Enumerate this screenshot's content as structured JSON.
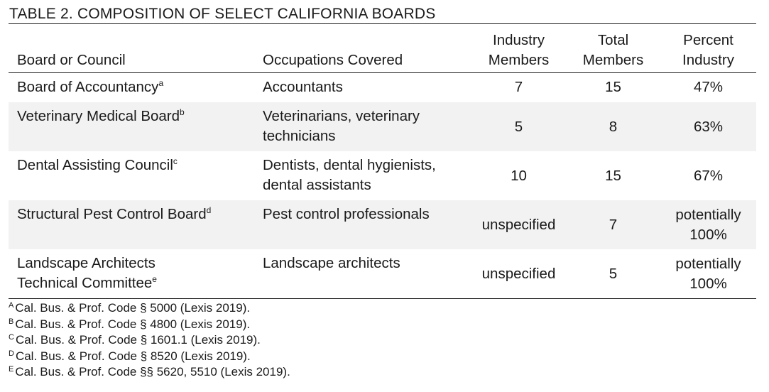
{
  "table": {
    "title": "TABLE 2. COMPOSITION OF SELECT CALIFORNIA BOARDS",
    "headers": {
      "board": "Board or Council",
      "occupations": "Occupations Covered",
      "industry_line1": "Industry",
      "industry_line2": "Members",
      "total_line1": "Total",
      "total_line2": "Members",
      "percent_line1": "Percent",
      "percent_line2": "Industry"
    },
    "rows": [
      {
        "board_line1": "Board of Accountancy",
        "board_line2": "",
        "marker": "a",
        "occ_line1": "Accountants",
        "occ_line2": "",
        "industry": "7",
        "total": "15",
        "percent_line1": "47%",
        "percent_line2": ""
      },
      {
        "board_line1": "Veterinary Medical Board",
        "board_line2": "",
        "marker": "b",
        "occ_line1": "Veterinarians, veterinary",
        "occ_line2": "technicians",
        "industry": "5",
        "total": "8",
        "percent_line1": "63%",
        "percent_line2": ""
      },
      {
        "board_line1": "Dental Assisting Council",
        "board_line2": "",
        "marker": "c",
        "occ_line1": "Dentists, dental hygienists,",
        "occ_line2": "dental assistants",
        "industry": "10",
        "total": "15",
        "percent_line1": "67%",
        "percent_line2": ""
      },
      {
        "board_line1": "Structural Pest Control Board",
        "board_line2": "",
        "marker": "d",
        "occ_line1": "Pest control professionals",
        "occ_line2": "",
        "industry": "unspecified",
        "total": "7",
        "percent_line1": "potentially",
        "percent_line2": "100%"
      },
      {
        "board_line1": "Landscape Architects",
        "board_line2": "Technical Committee",
        "marker": "e",
        "occ_line1": "Landscape architects",
        "occ_line2": "",
        "industry": "unspecified",
        "total": "5",
        "percent_line1": "potentially",
        "percent_line2": "100%"
      }
    ],
    "footnotes": [
      {
        "marker": "A",
        "text": "Cal. Bus. & Prof. Code § 5000 (Lexis 2019)."
      },
      {
        "marker": "B",
        "text": "Cal. Bus. & Prof. Code § 4800 (Lexis 2019)."
      },
      {
        "marker": "C",
        "text": "Cal. Bus. & Prof. Code § 1601.1 (Lexis 2019)."
      },
      {
        "marker": "D",
        "text": "Cal. Bus. & Prof. Code § 8520 (Lexis 2019)."
      },
      {
        "marker": "E",
        "text": "Cal. Bus. & Prof. Code §§ 5620, 5510 (Lexis 2019)."
      }
    ]
  }
}
